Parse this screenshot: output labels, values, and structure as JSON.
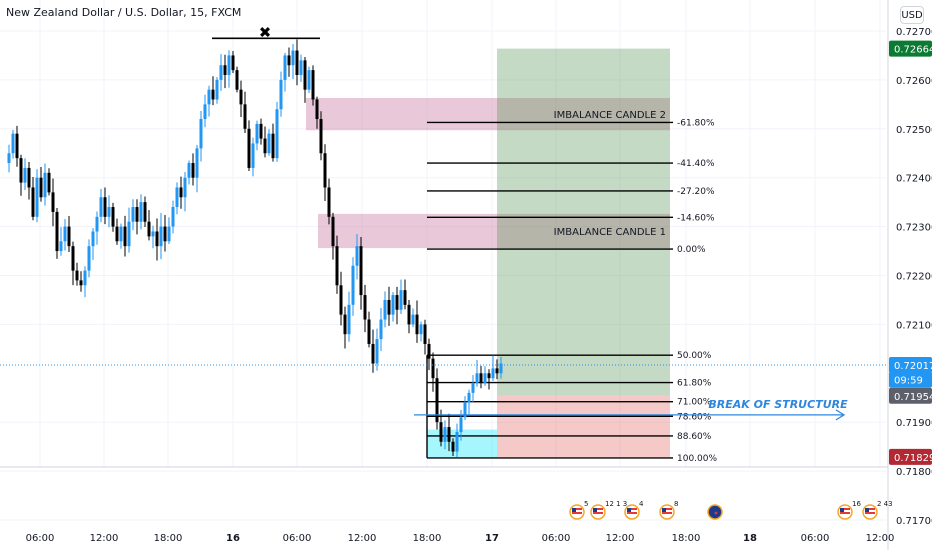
{
  "header": {
    "title": "New Zealand Dollar / U.S. Dollar, 15, FXCM",
    "currency_button": "USD"
  },
  "price_axis": {
    "ticks": [
      "0.72700",
      "0.72600",
      "0.72500",
      "0.72400",
      "0.72300",
      "0.72200",
      "0.72100",
      "0.71900",
      "0.71800",
      "0.71700"
    ],
    "tick_values": [
      0.727,
      0.726,
      0.725,
      0.724,
      0.723,
      0.722,
      0.721,
      0.719,
      0.718,
      0.717
    ],
    "badges": [
      {
        "label": "0.72664",
        "value": 0.72664,
        "color": "#0b7a32"
      },
      {
        "label": "0.72017",
        "value": 0.72017,
        "color": "#2196f3"
      },
      {
        "label": "09:59",
        "value": 0.71987,
        "color": "#2196f3"
      },
      {
        "label": "0.71954",
        "value": 0.71954,
        "color": "#5d606b"
      },
      {
        "label": "0.71829",
        "value": 0.71829,
        "color": "#b22833"
      }
    ]
  },
  "time_axis": {
    "ticks": [
      "06:00",
      "12:00",
      "18:00",
      "16",
      "06:00",
      "12:00",
      "18:00",
      "17",
      "06:00",
      "12:00",
      "18:00",
      "18",
      "06:00",
      "12:00"
    ],
    "bold_ticks": [
      "16",
      "17",
      "18"
    ]
  },
  "chart_data": {
    "type": "candlestick",
    "title": "New Zealand Dollar / U.S. Dollar, 15, FXCM",
    "currency": "USD",
    "ylim": [
      0.7168,
      0.7275
    ],
    "close_path": [
      [
        0,
        0.7245
      ],
      [
        4,
        0.7249
      ],
      [
        8,
        0.7244
      ],
      [
        12,
        0.7239
      ],
      [
        16,
        0.7242
      ],
      [
        20,
        0.7238
      ],
      [
        24,
        0.7232
      ],
      [
        28,
        0.724
      ],
      [
        32,
        0.7236
      ],
      [
        36,
        0.7241
      ],
      [
        40,
        0.7237
      ],
      [
        44,
        0.7233
      ],
      [
        48,
        0.7225
      ],
      [
        52,
        0.7227
      ],
      [
        56,
        0.723
      ],
      [
        60,
        0.7226
      ],
      [
        64,
        0.7221
      ],
      [
        68,
        0.7219
      ],
      [
        72,
        0.7218
      ],
      [
        76,
        0.7221
      ],
      [
        80,
        0.7226
      ],
      [
        84,
        0.7229
      ],
      [
        88,
        0.7232
      ],
      [
        92,
        0.7236
      ],
      [
        96,
        0.7232
      ],
      [
        100,
        0.7234
      ],
      [
        104,
        0.723
      ],
      [
        108,
        0.7227
      ],
      [
        112,
        0.723
      ],
      [
        116,
        0.7226
      ],
      [
        120,
        0.7231
      ],
      [
        124,
        0.7234
      ],
      [
        128,
        0.7231
      ],
      [
        132,
        0.7235
      ],
      [
        136,
        0.7231
      ],
      [
        140,
        0.7228
      ],
      [
        144,
        0.7229
      ],
      [
        148,
        0.7226
      ],
      [
        152,
        0.723
      ],
      [
        156,
        0.7227
      ],
      [
        160,
        0.723
      ],
      [
        164,
        0.7234
      ],
      [
        168,
        0.7238
      ],
      [
        172,
        0.7236
      ],
      [
        176,
        0.724
      ],
      [
        180,
        0.7243
      ],
      [
        184,
        0.724
      ],
      [
        188,
        0.7246
      ],
      [
        192,
        0.7252
      ],
      [
        196,
        0.7255
      ],
      [
        200,
        0.7258
      ],
      [
        204,
        0.7256
      ],
      [
        208,
        0.726
      ],
      [
        212,
        0.7263
      ],
      [
        216,
        0.7261
      ],
      [
        220,
        0.7265
      ],
      [
        224,
        0.7262
      ],
      [
        228,
        0.7258
      ],
      [
        232,
        0.7255
      ],
      [
        236,
        0.725
      ],
      [
        240,
        0.7242
      ],
      [
        244,
        0.7247
      ],
      [
        248,
        0.7251
      ],
      [
        252,
        0.7248
      ],
      [
        256,
        0.7245
      ],
      [
        260,
        0.7249
      ],
      [
        264,
        0.7244
      ],
      [
        268,
        0.7254
      ],
      [
        272,
        0.726
      ],
      [
        276,
        0.7265
      ],
      [
        280,
        0.7263
      ],
      [
        284,
        0.7266
      ],
      [
        288,
        0.7261
      ],
      [
        292,
        0.7264
      ],
      [
        296,
        0.7258
      ],
      [
        300,
        0.7262
      ],
      [
        304,
        0.7256
      ],
      [
        308,
        0.7252
      ],
      [
        312,
        0.7245
      ],
      [
        316,
        0.7238
      ],
      [
        320,
        0.7232
      ],
      [
        324,
        0.7226
      ],
      [
        328,
        0.7218
      ],
      [
        332,
        0.7212
      ],
      [
        336,
        0.7208
      ],
      [
        340,
        0.7214
      ],
      [
        344,
        0.7222
      ],
      [
        348,
        0.7226
      ],
      [
        352,
        0.7216
      ],
      [
        356,
        0.7211
      ],
      [
        360,
        0.7206
      ],
      [
        364,
        0.7202
      ],
      [
        368,
        0.7207
      ],
      [
        372,
        0.7211
      ],
      [
        376,
        0.7215
      ],
      [
        380,
        0.7212
      ],
      [
        384,
        0.7216
      ],
      [
        388,
        0.7213
      ],
      [
        392,
        0.7217
      ],
      [
        396,
        0.7214
      ],
      [
        400,
        0.721
      ],
      [
        404,
        0.7212
      ],
      [
        408,
        0.7208
      ],
      [
        412,
        0.721
      ],
      [
        416,
        0.7206
      ],
      [
        420,
        0.7203
      ],
      [
        424,
        0.7199
      ],
      [
        428,
        0.719
      ],
      [
        432,
        0.7186
      ],
      [
        436,
        0.7189
      ],
      [
        440,
        0.7186
      ],
      [
        444,
        0.7184
      ],
      [
        448,
        0.7188
      ],
      [
        452,
        0.7191
      ],
      [
        456,
        0.7194
      ],
      [
        460,
        0.7196
      ],
      [
        464,
        0.7198
      ],
      [
        468,
        0.72
      ],
      [
        472,
        0.7198
      ],
      [
        476,
        0.72
      ],
      [
        480,
        0.7199
      ],
      [
        484,
        0.7201
      ],
      [
        488,
        0.72
      ],
      [
        492,
        0.7202
      ]
    ],
    "zones": [
      {
        "name": "imbalance-candle-2",
        "x_from": 306,
        "x_to": 670,
        "y_top": 0.72563,
        "y_bottom": 0.72497,
        "color": "rgba(200,120,160,0.40)",
        "label": "IMBALANCE CANDLE 2"
      },
      {
        "name": "imbalance-candle-1",
        "x_from": 318,
        "x_to": 670,
        "y_top": 0.72326,
        "y_bottom": 0.72256,
        "color": "rgba(200,120,160,0.40)",
        "label": "IMBALANCE CANDLE 1"
      },
      {
        "name": "target-zone",
        "x_from": 497,
        "x_to": 670,
        "y_top": 0.72664,
        "y_bottom": 0.71954,
        "color": "rgba(76,140,72,0.32)",
        "label": ""
      },
      {
        "name": "stop-zone",
        "x_from": 497,
        "x_to": 670,
        "y_top": 0.71954,
        "y_bottom": 0.71829,
        "color": "rgba(230,100,100,0.35)",
        "label": ""
      },
      {
        "name": "entry-box",
        "x_from": 427,
        "x_to": 497,
        "y_top": 0.71885,
        "y_bottom": 0.71829,
        "color": "rgba(0,230,250,0.35)",
        "label": ""
      }
    ],
    "fib_levels": [
      {
        "label": "-61.80%",
        "value": 0.72513
      },
      {
        "label": "-41.40%",
        "value": 0.7243
      },
      {
        "label": "-27.20%",
        "value": 0.72373
      },
      {
        "label": "-14.60%",
        "value": 0.72319
      },
      {
        "label": "0.00%",
        "value": 0.72254
      },
      {
        "label": "50.00%",
        "value": 0.72037
      },
      {
        "label": "61.80%",
        "value": 0.71981
      },
      {
        "label": "71.00%",
        "value": 0.71942
      },
      {
        "label": "78.60%",
        "value": 0.71912
      },
      {
        "label": "88.60%",
        "value": 0.71872
      },
      {
        "label": "100.00%",
        "value": 0.71827
      }
    ],
    "annotations": {
      "top_line_value": 0.72685,
      "cross_mark": "✖",
      "bos_label": "BREAK OF STRUCTURE",
      "bos_value": 0.71915,
      "current_price": 0.72017
    },
    "event_markers": [
      {
        "counts": "5",
        "flag": "us"
      },
      {
        "counts": "12 1 3",
        "flag": "us"
      },
      {
        "counts": "4",
        "flag": "us"
      },
      {
        "counts": "8",
        "flag": "us"
      },
      {
        "counts": "",
        "flag": "nz"
      },
      {
        "counts": "16",
        "flag": "us"
      },
      {
        "counts": "2 43",
        "flag": "us"
      }
    ]
  }
}
